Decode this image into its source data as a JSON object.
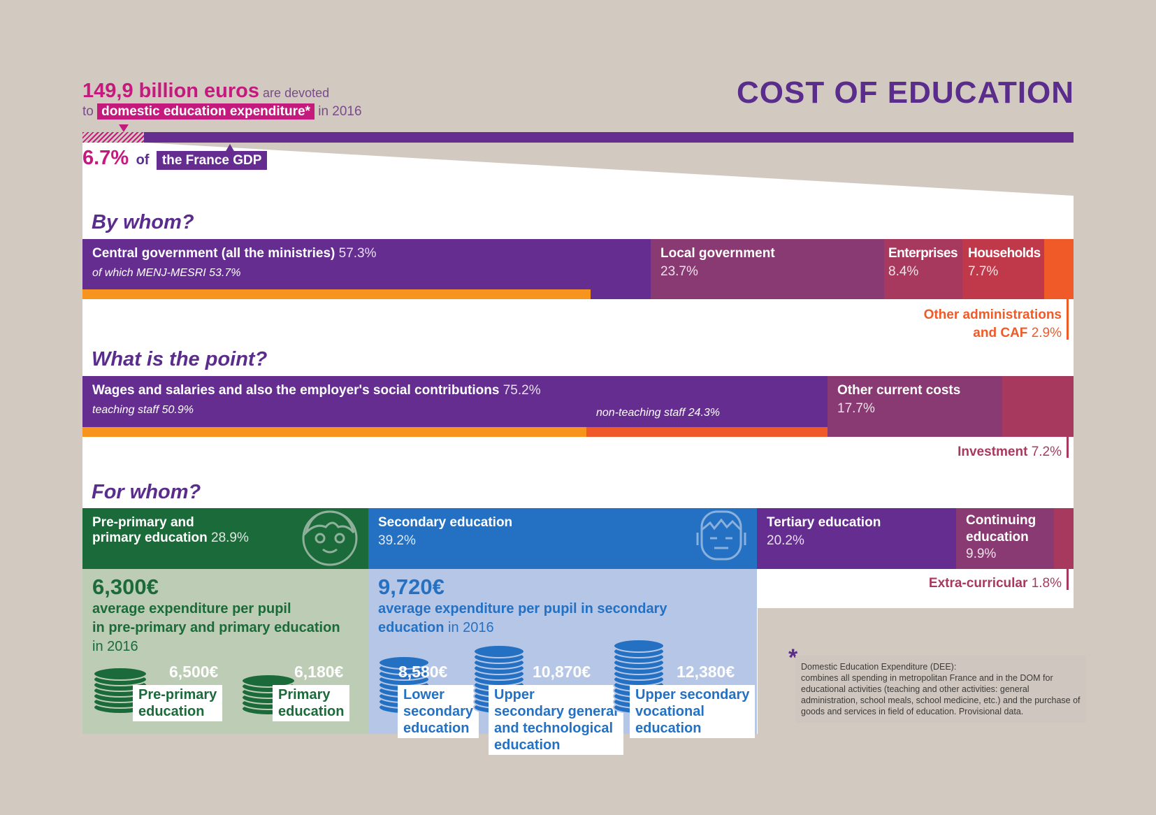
{
  "title": "COST OF EDUCATION",
  "headline": {
    "amount": "149,9 billion euros",
    "are_devoted": "are devoted",
    "to": "to",
    "tag": "domestic education expenditure*",
    "year": "in 2016",
    "gdp_pct": "6.7%",
    "gdp_of": "of",
    "gdp_tag": "the France GDP"
  },
  "by_whom": {
    "heading": "By whom?",
    "central_label": "Central government (all the ministries)",
    "central_value": "57.3%",
    "central_sub": "of which MENJ-MESRI 53.7%",
    "local_label": "Local government",
    "local_value": "23.7%",
    "enterprises_label": "Enterprises",
    "enterprises_value": "8.4%",
    "households_label": "Households",
    "households_value": "7.7%",
    "other_label_1": "Other administrations",
    "other_label_2": "and CAF",
    "other_value": "2.9%"
  },
  "what_point": {
    "heading": "What is the point?",
    "wages_label": "Wages and salaries and also the employer's social contributions",
    "wages_value": "75.2%",
    "teaching": "teaching staff 50.9%",
    "non_teaching": "non-teaching staff 24.3%",
    "other_label": "Other current costs",
    "other_value": "17.7%",
    "investment_label": "Investment",
    "investment_value": "7.2%"
  },
  "for_whom": {
    "heading": "For whom?",
    "primary_label_1": "Pre-primary and",
    "primary_label_2": "primary education",
    "primary_value": "28.9%",
    "secondary_label": "Secondary education",
    "secondary_value": "39.2%",
    "tertiary_label": "Tertiary education",
    "tertiary_value": "20.2%",
    "continuing_label_1": "Continuing",
    "continuing_label_2": "education",
    "continuing_value": "9.9%",
    "extra_label": "Extra-curricular",
    "extra_value": "1.8%"
  },
  "primary_box": {
    "amount": "6,300€",
    "text_1": "average expenditure per pupil",
    "text_2": "in pre-primary and primary education",
    "year": "in 2016",
    "coin1_value": "6,500€",
    "coin1_label_1": "Pre-primary",
    "coin1_label_2": "education",
    "coin2_value": "6,180€",
    "coin2_label_1": "Primary",
    "coin2_label_2": "education"
  },
  "secondary_box": {
    "amount": "9,720€",
    "text_1": "average expenditure per pupil in secondary",
    "text_2": "education",
    "year": "in 2016",
    "coin1_value": "8,580€",
    "coin1_label_1": "Lower",
    "coin1_label_2": "secondary",
    "coin1_label_3": "education",
    "coin2_value": "10,870€",
    "coin2_label_1": "Upper",
    "coin2_label_2": "secondary general",
    "coin2_label_3": "and technological",
    "coin2_label_4": "education",
    "coin3_value": "12,380€",
    "coin3_label_1": "Upper secondary",
    "coin3_label_2": "vocational",
    "coin3_label_3": "education"
  },
  "footnote": {
    "star": "*",
    "title": "Domestic Education Expenditure (DEE):",
    "body": "combines all spending in metropolitan France and in the DOM for educational activities (teaching and other activities: general administration, school meals, school medicine, etc.) and the purchase of goods and services in field of education. Provisional data."
  },
  "colors": {
    "purple": "#662d91",
    "plum": "#8a3a72",
    "rose": "#a8395e",
    "orange": "#f05a28",
    "amber": "#f7941d",
    "pink": "#c4197d",
    "green": "#1b6b3a",
    "green_light": "#bcccb5",
    "blue": "#2471c4",
    "blue_light": "#b6c6e6"
  }
}
